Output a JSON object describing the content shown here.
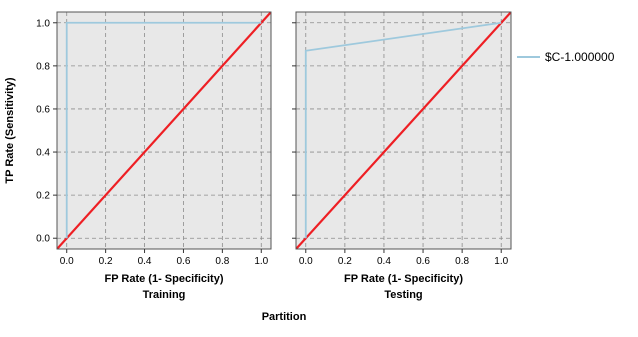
{
  "chart_data": {
    "type": "line",
    "ylabel": "TP Rate (Sensitivity)",
    "xlabel": "FP Rate (1- Specificity)",
    "group_label": "Partition",
    "xlim": [
      -0.05,
      1.05
    ],
    "ylim": [
      -0.05,
      1.05
    ],
    "x_ticks": [
      "0.0",
      "0.2",
      "0.4",
      "0.6",
      "0.8",
      "1.0"
    ],
    "y_ticks": [
      "0.0",
      "0.2",
      "0.4",
      "0.6",
      "0.8",
      "1.0"
    ],
    "grid": true,
    "legend_position": "right",
    "colors": {
      "plot_bg": "#e8e8e8",
      "grid": "#8c8c8c",
      "roc": "#9ec9dd",
      "diagonal": "#ee1f24",
      "frame": "#555555"
    },
    "panels": [
      {
        "label": "Training",
        "series": [
          {
            "name": "$C-1.000000",
            "x": [
              0.0,
              0.0,
              1.0
            ],
            "y": [
              0.0,
              1.0,
              1.0
            ]
          }
        ],
        "diagonal": {
          "x": [
            -0.05,
            1.05
          ],
          "y": [
            -0.05,
            1.05
          ]
        }
      },
      {
        "label": "Testing",
        "series": [
          {
            "name": "$C-1.000000",
            "x": [
              0.0,
              0.0,
              1.0
            ],
            "y": [
              0.0,
              0.87,
              1.0
            ]
          }
        ],
        "diagonal": {
          "x": [
            -0.05,
            1.05
          ],
          "y": [
            -0.05,
            1.05
          ]
        }
      }
    ],
    "legend": [
      {
        "label": "$C-1.000000"
      }
    ]
  }
}
